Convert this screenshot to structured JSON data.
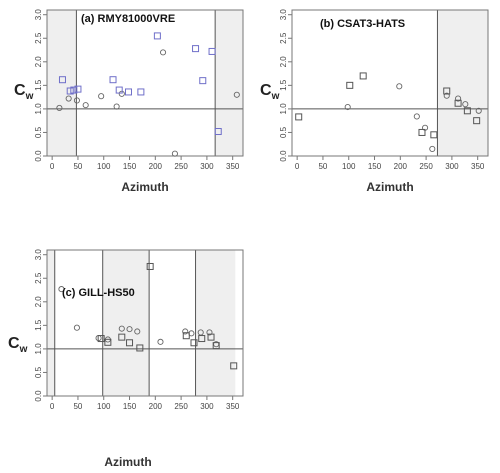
{
  "chart_data": [
    {
      "type": "scatter",
      "title": "(a) RMY81000VRE",
      "xlabel": "Azimuth",
      "ylabel": "C",
      "ylabel_sub": "w",
      "xlim": [
        -10,
        370
      ],
      "ylim": [
        0,
        3.1
      ],
      "xticks": [
        0,
        50,
        100,
        150,
        200,
        250,
        300,
        350
      ],
      "yticks": [
        0,
        0.5,
        1.0,
        1.5,
        2.0,
        2.5,
        3.0
      ],
      "ytick_labels": [
        "0.0",
        "0.5",
        "1.0",
        "1.5",
        "2.0",
        "2.5",
        "3.0"
      ],
      "shaded_ranges": [
        [
          -10,
          47
        ],
        [
          316,
          370
        ]
      ],
      "vlines": [
        47,
        316
      ],
      "hline": 1.0,
      "square_color": "#6f6fc9",
      "circle_color": "#666666",
      "series": [
        {
          "marker": "circle",
          "points": [
            [
              14,
              1.02
            ],
            [
              32,
              1.22
            ],
            [
              48,
              1.18
            ],
            [
              65,
              1.08
            ],
            [
              95,
              1.27
            ],
            [
              125,
              1.05
            ],
            [
              135,
              1.32
            ],
            [
              215,
              2.2
            ],
            [
              238,
              0.05
            ],
            [
              358,
              1.3
            ]
          ]
        },
        {
          "marker": "square",
          "points": [
            [
              20,
              1.62
            ],
            [
              35,
              1.38
            ],
            [
              42,
              1.4
            ],
            [
              50,
              1.42
            ],
            [
              118,
              1.62
            ],
            [
              130,
              1.4
            ],
            [
              148,
              1.36
            ],
            [
              172,
              1.36
            ],
            [
              204,
              2.55
            ],
            [
              278,
              2.28
            ],
            [
              292,
              1.6
            ],
            [
              310,
              2.22
            ],
            [
              322,
              0.52
            ]
          ]
        }
      ]
    },
    {
      "type": "scatter",
      "title": "(b) CSAT3-HATS",
      "xlabel": "Azimuth",
      "ylabel": "C",
      "ylabel_sub": "w",
      "xlim": [
        -10,
        370
      ],
      "ylim": [
        0,
        3.1
      ],
      "xticks": [
        0,
        50,
        100,
        150,
        200,
        250,
        300,
        350
      ],
      "yticks": [
        0,
        0.5,
        1.0,
        1.5,
        2.0,
        2.5,
        3.0
      ],
      "ytick_labels": [
        "0.0",
        "0.5",
        "1.0",
        "1.5",
        "2.0",
        "2.5",
        "3.0"
      ],
      "shaded_ranges": [
        [
          272,
          370
        ]
      ],
      "vlines": [
        272
      ],
      "hline": 1.0,
      "square_color": "#555555",
      "circle_color": "#666666",
      "series": [
        {
          "marker": "circle",
          "points": [
            [
              98,
              1.04
            ],
            [
              198,
              1.48
            ],
            [
              232,
              0.84
            ],
            [
              248,
              0.6
            ],
            [
              262,
              0.15
            ],
            [
              290,
              1.28
            ],
            [
              312,
              1.22
            ],
            [
              326,
              1.1
            ],
            [
              352,
              0.96
            ]
          ]
        },
        {
          "marker": "square",
          "points": [
            [
              3,
              0.83
            ],
            [
              102,
              1.5
            ],
            [
              128,
              1.7
            ],
            [
              242,
              0.5
            ],
            [
              265,
              0.45
            ],
            [
              290,
              1.38
            ],
            [
              312,
              1.12
            ],
            [
              330,
              0.96
            ],
            [
              348,
              0.75
            ]
          ]
        }
      ]
    },
    {
      "type": "scatter",
      "title": "(c) GILL-HS50",
      "xlabel": "Azimuth",
      "ylabel": "C",
      "ylabel_sub": "w",
      "xlim": [
        -10,
        370
      ],
      "ylim": [
        0,
        3.1
      ],
      "xticks": [
        0,
        50,
        100,
        150,
        200,
        250,
        300,
        350
      ],
      "yticks": [
        0,
        0.5,
        1.0,
        1.5,
        2.0,
        2.5,
        3.0
      ],
      "ytick_labels": [
        "0.0",
        "0.5",
        "1.0",
        "1.5",
        "2.0",
        "2.5",
        "3.0"
      ],
      "shaded_ranges": [
        [
          -10,
          5
        ],
        [
          98,
          188
        ],
        [
          278,
          355
        ]
      ],
      "vlines": [
        5,
        98,
        188,
        278
      ],
      "hline": 1.0,
      "square_color": "#555555",
      "circle_color": "#666666",
      "series": [
        {
          "marker": "circle",
          "points": [
            [
              18,
              2.27
            ],
            [
              48,
              1.45
            ],
            [
              90,
              1.23
            ],
            [
              108,
              1.2
            ],
            [
              135,
              1.43
            ],
            [
              150,
              1.42
            ],
            [
              165,
              1.37
            ],
            [
              210,
              1.15
            ],
            [
              258,
              1.37
            ],
            [
              270,
              1.33
            ],
            [
              288,
              1.35
            ],
            [
              305,
              1.35
            ],
            [
              318,
              1.1
            ]
          ]
        },
        {
          "marker": "square",
          "points": [
            [
              95,
              1.22
            ],
            [
              108,
              1.14
            ],
            [
              135,
              1.25
            ],
            [
              150,
              1.13
            ],
            [
              170,
              1.02
            ],
            [
              190,
              2.75
            ],
            [
              260,
              1.28
            ],
            [
              275,
              1.13
            ],
            [
              290,
              1.22
            ],
            [
              308,
              1.25
            ],
            [
              318,
              1.07
            ],
            [
              352,
              0.64
            ]
          ]
        }
      ]
    }
  ]
}
